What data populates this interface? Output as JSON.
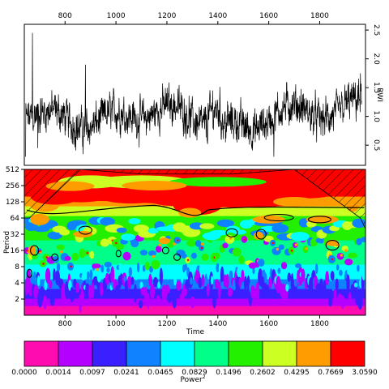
{
  "chart_data": [
    {
      "type": "line",
      "panel": "time-series",
      "xlim": [
        640,
        1980
      ],
      "ylim": [
        0.15,
        2.6
      ],
      "x_ticks": [
        800,
        1000,
        1200,
        1400,
        1600,
        1800
      ],
      "x_tick_position": "top",
      "y_ticks": [
        0.5,
        1.0,
        1.5,
        2.0,
        2.5
      ],
      "y_tick_labels": [
        "0.5",
        "1.0",
        "1.5",
        "2.0",
        "2.5"
      ],
      "y_tick_position": "right",
      "ylabel": "RWI",
      "grid": false,
      "line_color": "#000000",
      "baseline": 1.0,
      "key_points": [
        {
          "x": 645,
          "y": 0.3
        },
        {
          "x": 672,
          "y": 2.45
        },
        {
          "x": 693,
          "y": 0.45
        },
        {
          "x": 880,
          "y": 1.9
        },
        {
          "x": 1380,
          "y": 1.45
        },
        {
          "x": 1430,
          "y": 0.55
        },
        {
          "x": 1620,
          "y": 0.3
        },
        {
          "x": 1960,
          "y": 1.75
        }
      ],
      "note_points": "dense annual ring-width index series, approx one value per year"
    },
    {
      "type": "heatmap",
      "panel": "wavelet-power-spectrum",
      "xlim": [
        640,
        1980
      ],
      "x_ticks": [
        800,
        1000,
        1200,
        1400,
        1600,
        1800
      ],
      "xlabel": "Time",
      "ylabel": "Period",
      "y_scale": "log2",
      "ylim": [
        1,
        512
      ],
      "y_ticks": [
        2,
        4,
        8,
        16,
        32,
        64,
        128,
        256,
        512
      ],
      "y_tick_labels": [
        "2",
        "4",
        "8",
        "16",
        "32",
        "64",
        "128",
        "256",
        "512"
      ],
      "cone_of_influence": "hatched",
      "significance_contours": "black",
      "colorbar": {
        "label": "Power",
        "label_superscript": "2",
        "levels": [
          "0.0000",
          "0.0014",
          "0.0097",
          "0.0241",
          "0.0465",
          "0.0829",
          "0.1496",
          "0.2602",
          "0.4295",
          "0.7669",
          "3.0590"
        ],
        "colors": [
          "#ff0cb0",
          "#b300ff",
          "#3b20ff",
          "#0e82ff",
          "#00ffff",
          "#00ff88",
          "#22f000",
          "#ccff22",
          "#ff9c00",
          "#ff0000"
        ]
      }
    }
  ]
}
